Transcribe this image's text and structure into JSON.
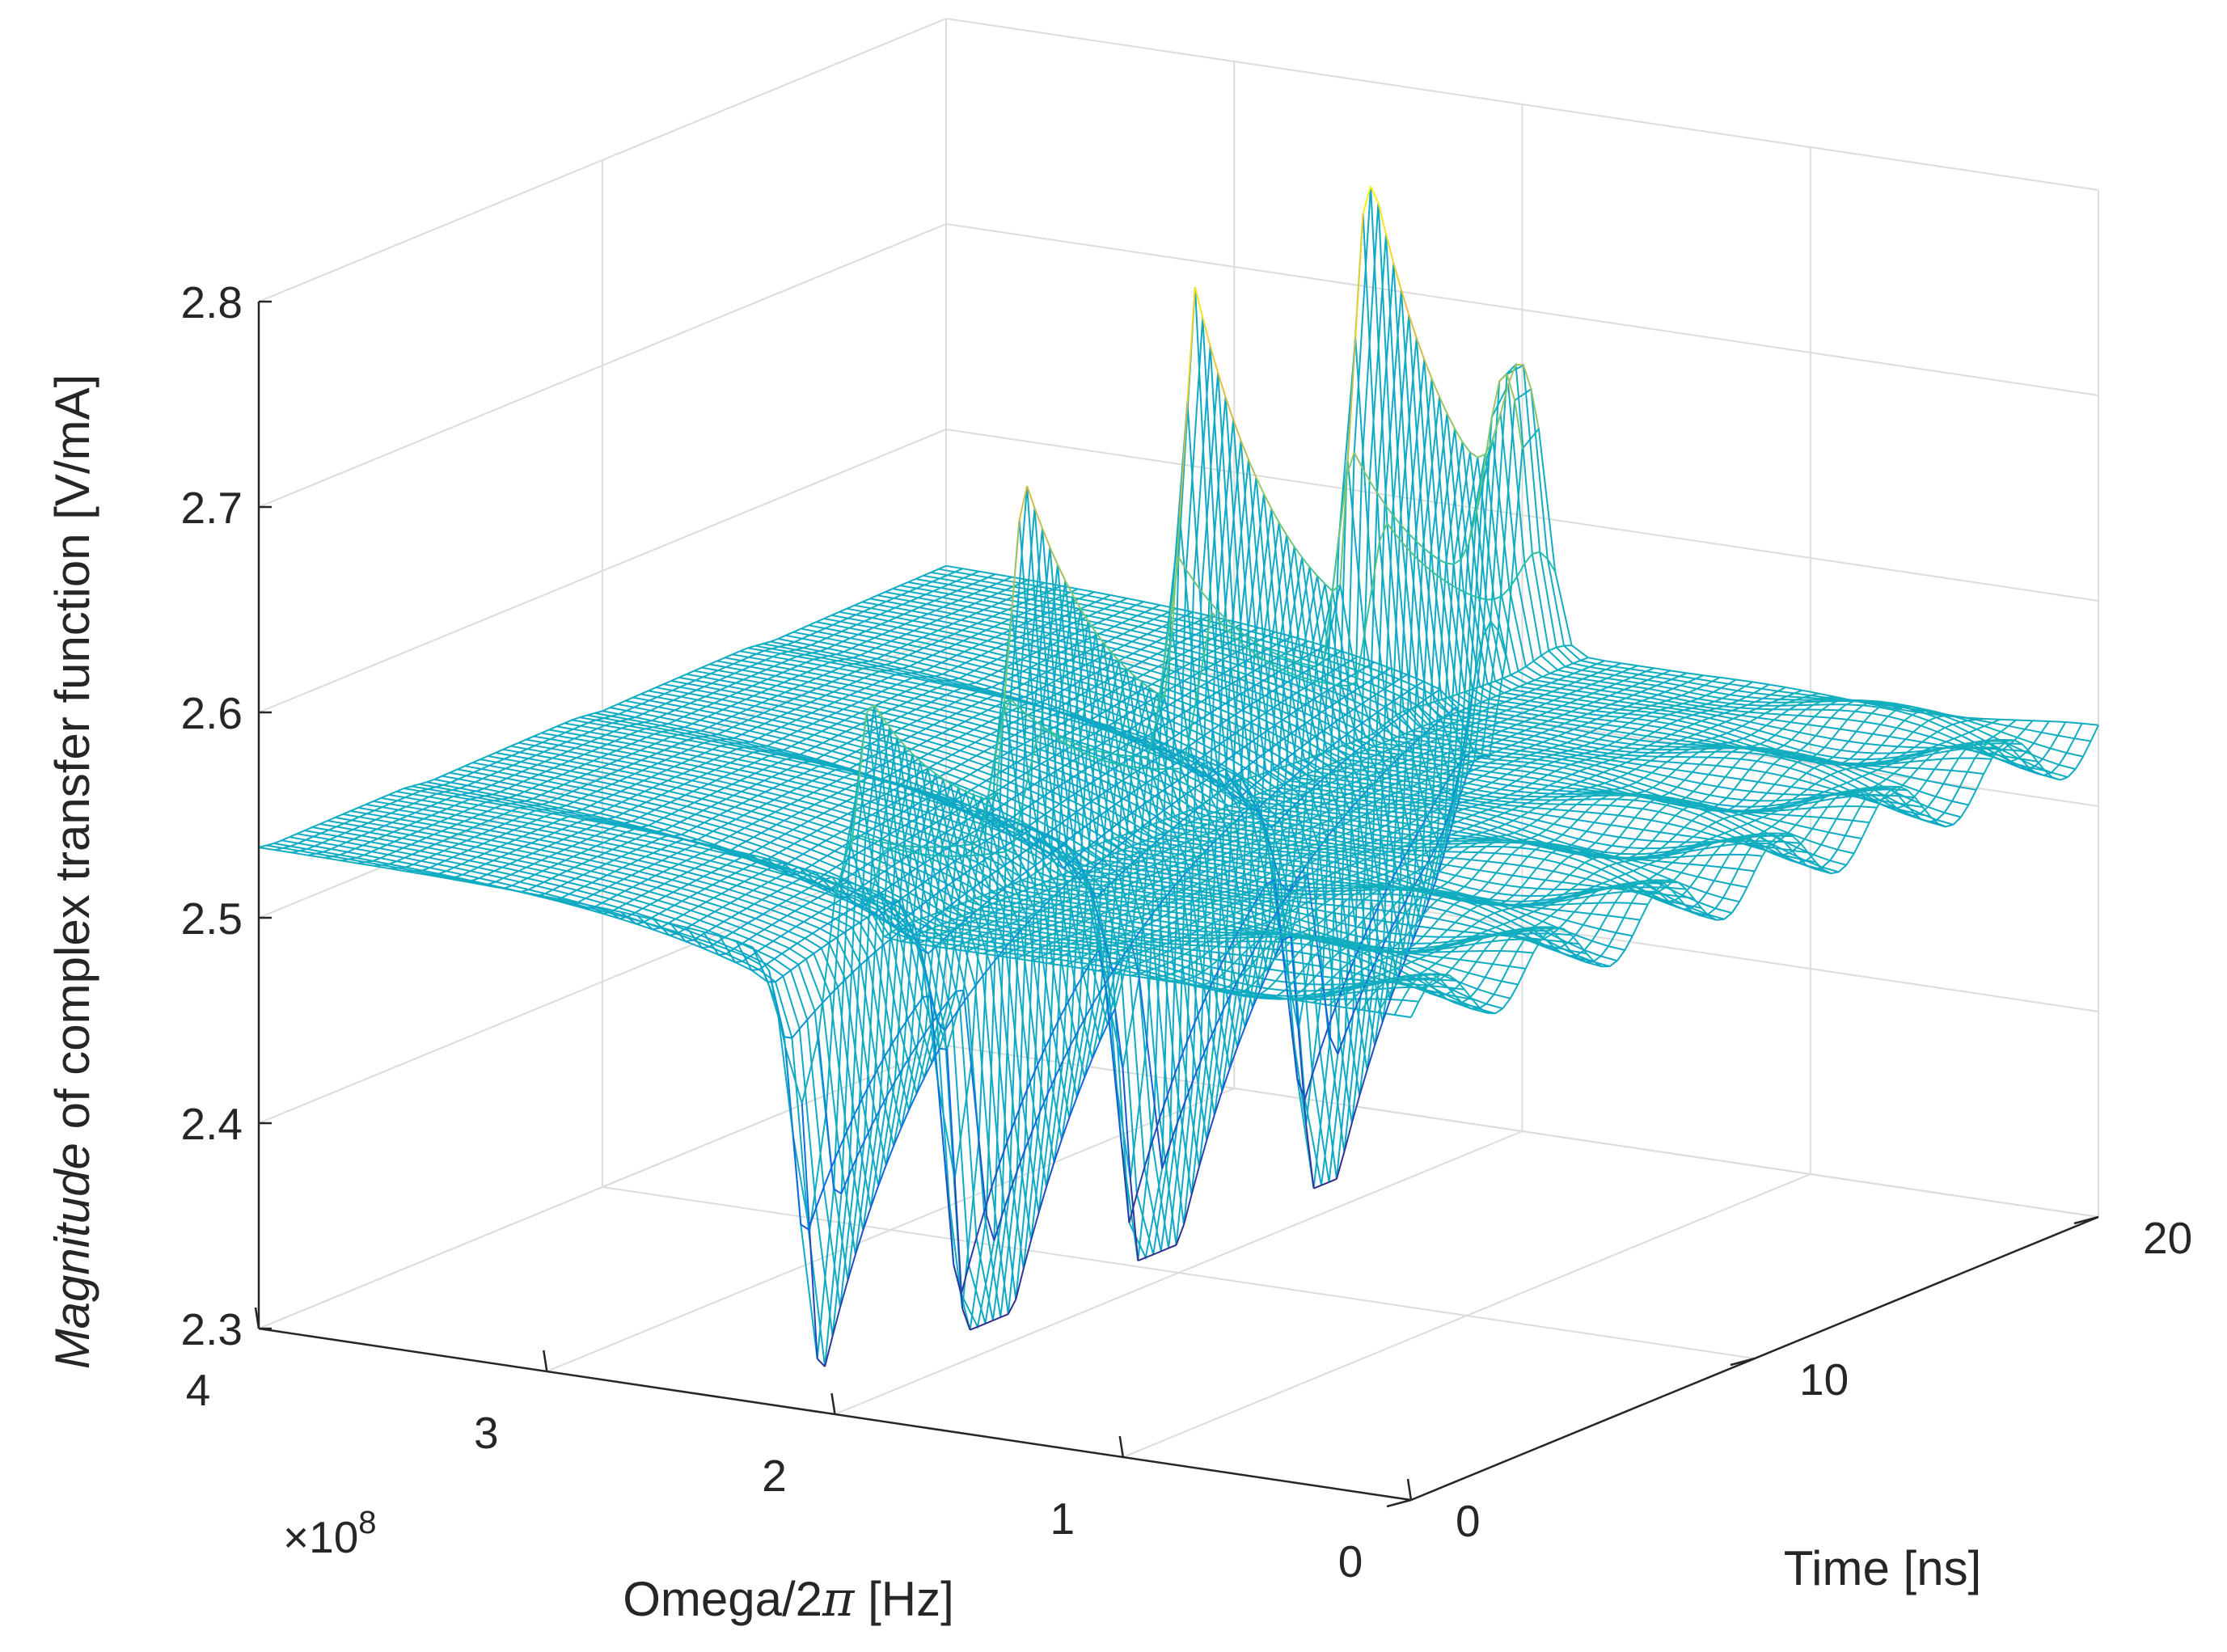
{
  "chart_data": {
    "type": "surface-mesh",
    "x_axis": {
      "label_prefix": "Omega/2",
      "label_symbol": "π",
      "label_suffix": " [Hz]",
      "range": [
        0,
        400000000
      ],
      "ticks": [
        "0",
        "1",
        "2",
        "3",
        "4"
      ],
      "tick_values": [
        0,
        100000000,
        200000000,
        300000000,
        400000000
      ],
      "multiplier_prefix": "×10",
      "multiplier_exponent": "8"
    },
    "y_axis": {
      "label": "Time [ns]",
      "range": [
        0,
        20
      ],
      "ticks": [
        "0",
        "10",
        "20"
      ],
      "tick_values": [
        0,
        10,
        20
      ]
    },
    "z_axis": {
      "label_italic": "Magnitude",
      "label_rest": " of complex transfer function [V/mA]",
      "range": [
        2.3,
        2.8
      ],
      "ticks": [
        "2.3",
        "2.4",
        "2.5",
        "2.6",
        "2.7",
        "2.8"
      ],
      "tick_values": [
        2.3,
        2.4,
        2.5,
        2.6,
        2.7,
        2.8
      ]
    },
    "surface": {
      "baseline": 2.535,
      "resonance_frequency_hz": 200000000,
      "pulse_times_ns": [
        0,
        4.5,
        9.5,
        14.5
      ],
      "peak_values": [
        2.65,
        2.7,
        2.745,
        2.765
      ],
      "trough_values": [
        2.35,
        2.33,
        2.36,
        2.39
      ],
      "tail_peak": 2.64,
      "tail_trough": 2.54,
      "tail_time_ns": 19.5,
      "ripple_amplitude": 0.015
    },
    "colormap": "parula",
    "grid": true
  }
}
